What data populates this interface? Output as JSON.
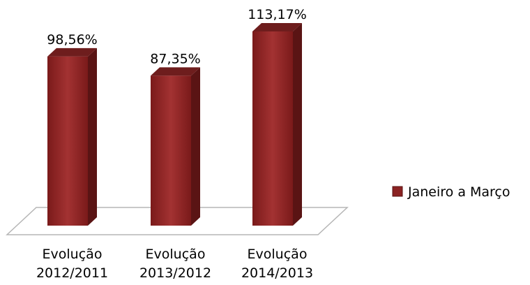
{
  "chart_data": {
    "type": "bar",
    "style": "3d-column",
    "categories": [
      [
        "Evolução",
        "2012/2011"
      ],
      [
        "Evolução",
        "2013/2012"
      ],
      [
        "Evolução",
        "2014/2013"
      ]
    ],
    "series": [
      {
        "name": "Janeiro a Março",
        "values": [
          98.56,
          87.35,
          113.17
        ],
        "value_labels": [
          "98,56%",
          "87,35%",
          "113,17%"
        ],
        "color": "#8b2323"
      }
    ],
    "ylim": [
      0,
      120
    ],
    "grid": false,
    "legend_position": "right",
    "floor_color": "#ffffff",
    "floor_stroke": "#b5b5b5"
  }
}
